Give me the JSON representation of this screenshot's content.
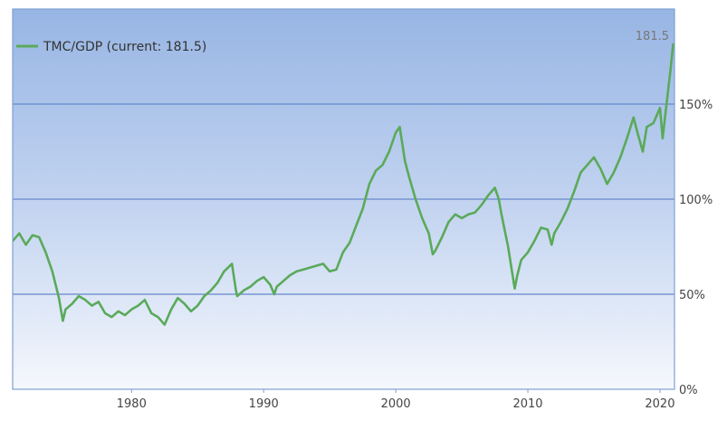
{
  "chart_data": {
    "type": "line",
    "title": "",
    "xlabel": "",
    "ylabel": "",
    "xlim": [
      1971,
      2021.1
    ],
    "ylim": [
      0,
      200
    ],
    "x_ticks": [
      {
        "value": 1980,
        "label": "1980"
      },
      {
        "value": 1990,
        "label": "1990"
      },
      {
        "value": 2000,
        "label": "2000"
      },
      {
        "value": 2010,
        "label": "2010"
      },
      {
        "value": 2020,
        "label": "2020"
      }
    ],
    "y_ticks": [
      {
        "value": 0,
        "label": "0%"
      },
      {
        "value": 50,
        "label": "50%"
      },
      {
        "value": 100,
        "label": "100%"
      },
      {
        "value": 150,
        "label": "150%"
      }
    ],
    "grid": "horizontal",
    "legend_position": "top-left",
    "current_label": "181.5",
    "series": [
      {
        "name": "TMC/GDP (current: 181.5)",
        "color": "#5aaa5a",
        "x": [
          1971,
          1971.5,
          1972,
          1972.5,
          1973,
          1973.5,
          1974,
          1974.5,
          1974.8,
          1975,
          1975.5,
          1976,
          1976.5,
          1977,
          1977.5,
          1978,
          1978.5,
          1979,
          1979.5,
          1980,
          1980.5,
          1981,
          1981.5,
          1982,
          1982.5,
          1983,
          1983.5,
          1984,
          1984.5,
          1985,
          1985.5,
          1986,
          1986.5,
          1987,
          1987.6,
          1987.9,
          1988,
          1988.5,
          1989,
          1989.5,
          1990,
          1990.5,
          1990.8,
          1991,
          1991.5,
          1992,
          1992.5,
          1993,
          1993.5,
          1994,
          1994.5,
          1995,
          1995.5,
          1996,
          1996.5,
          1997,
          1997.5,
          1998,
          1998.5,
          1999,
          1999.5,
          2000,
          2000.3,
          2000.7,
          2001,
          2001.5,
          2002,
          2002.5,
          2002.8,
          2003,
          2003.5,
          2004,
          2004.5,
          2005,
          2005.5,
          2006,
          2006.5,
          2007,
          2007.5,
          2007.8,
          2008,
          2008.5,
          2009,
          2009.2,
          2009.5,
          2010,
          2010.5,
          2011,
          2011.5,
          2011.8,
          2012,
          2012.5,
          2013,
          2013.5,
          2014,
          2014.5,
          2015,
          2015.5,
          2016,
          2016.5,
          2017,
          2017.5,
          2018,
          2018.3,
          2018.7,
          2019,
          2019.5,
          2020,
          2020.2,
          2020.5,
          2020.8,
          2021
        ],
        "values": [
          78,
          82,
          76,
          81,
          80,
          72,
          62,
          48,
          36,
          42,
          45,
          49,
          47,
          44,
          46,
          40,
          38,
          41,
          39,
          42,
          44,
          47,
          40,
          38,
          34,
          42,
          48,
          45,
          41,
          44,
          49,
          52,
          56,
          62,
          66,
          52,
          49,
          52,
          54,
          57,
          59,
          55,
          50,
          54,
          57,
          60,
          62,
          63,
          64,
          65,
          66,
          62,
          63,
          72,
          77,
          86,
          95,
          108,
          115,
          118,
          125,
          135,
          138,
          120,
          112,
          100,
          90,
          82,
          71,
          73,
          80,
          88,
          92,
          90,
          92,
          93,
          97,
          102,
          106,
          100,
          92,
          75,
          53,
          60,
          68,
          72,
          78,
          85,
          84,
          76,
          82,
          88,
          95,
          104,
          114,
          118,
          122,
          116,
          108,
          114,
          122,
          132,
          143,
          135,
          125,
          138,
          140,
          148,
          132,
          150,
          168,
          181.5
        ]
      }
    ]
  }
}
